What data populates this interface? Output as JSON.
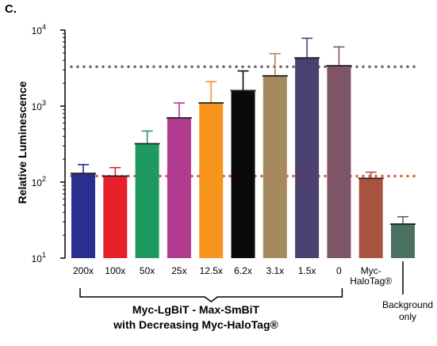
{
  "panel_label": "C.",
  "chart_data": {
    "type": "bar",
    "yscale": "log",
    "ylim": [
      10,
      10000
    ],
    "ylabel": "Relative Luminescence",
    "ytick_labels": [
      {
        "base": "10",
        "exp": "1"
      },
      {
        "base": "10",
        "exp": "2"
      },
      {
        "base": "10",
        "exp": "3"
      },
      {
        "base": "10",
        "exp": "4"
      }
    ],
    "categories": [
      "200x",
      "100x",
      "50x",
      "25x",
      "12.5x",
      "6.2x",
      "3.1x",
      "1.5x",
      "0",
      "Myc-HaloTag®",
      "Background only"
    ],
    "category_label_lines": [
      [
        "200x"
      ],
      [
        "100x"
      ],
      [
        "50x"
      ],
      [
        "25x"
      ],
      [
        "12.5x"
      ],
      [
        "6.2x"
      ],
      [
        "3.1x"
      ],
      [
        "1.5x"
      ],
      [
        "0"
      ],
      [
        "Myc-",
        "HaloTag®"
      ],
      [
        "Background",
        "only"
      ]
    ],
    "values": [
      130,
      120,
      320,
      700,
      1100,
      1600,
      2500,
      4300,
      3400,
      112,
      28
    ],
    "error_upper": [
      170,
      155,
      470,
      1100,
      2100,
      2900,
      4900,
      7800,
      6000,
      135,
      35
    ],
    "bar_colors": [
      "#2a2f8f",
      "#e8202a",
      "#1f9a5e",
      "#b13b8f",
      "#f7941d",
      "#0a0a0a",
      "#a48a5e",
      "#4b416f",
      "#7e5566",
      "#a85240",
      "#4a7060"
    ],
    "reference_lines": [
      {
        "value": 3300,
        "color": "#666666"
      },
      {
        "value": 120,
        "color": "#e8593a"
      }
    ],
    "group_label": [
      "Myc-LgBiT - Max-SmBiT",
      "with Decreasing Myc-HaloTag®"
    ]
  }
}
